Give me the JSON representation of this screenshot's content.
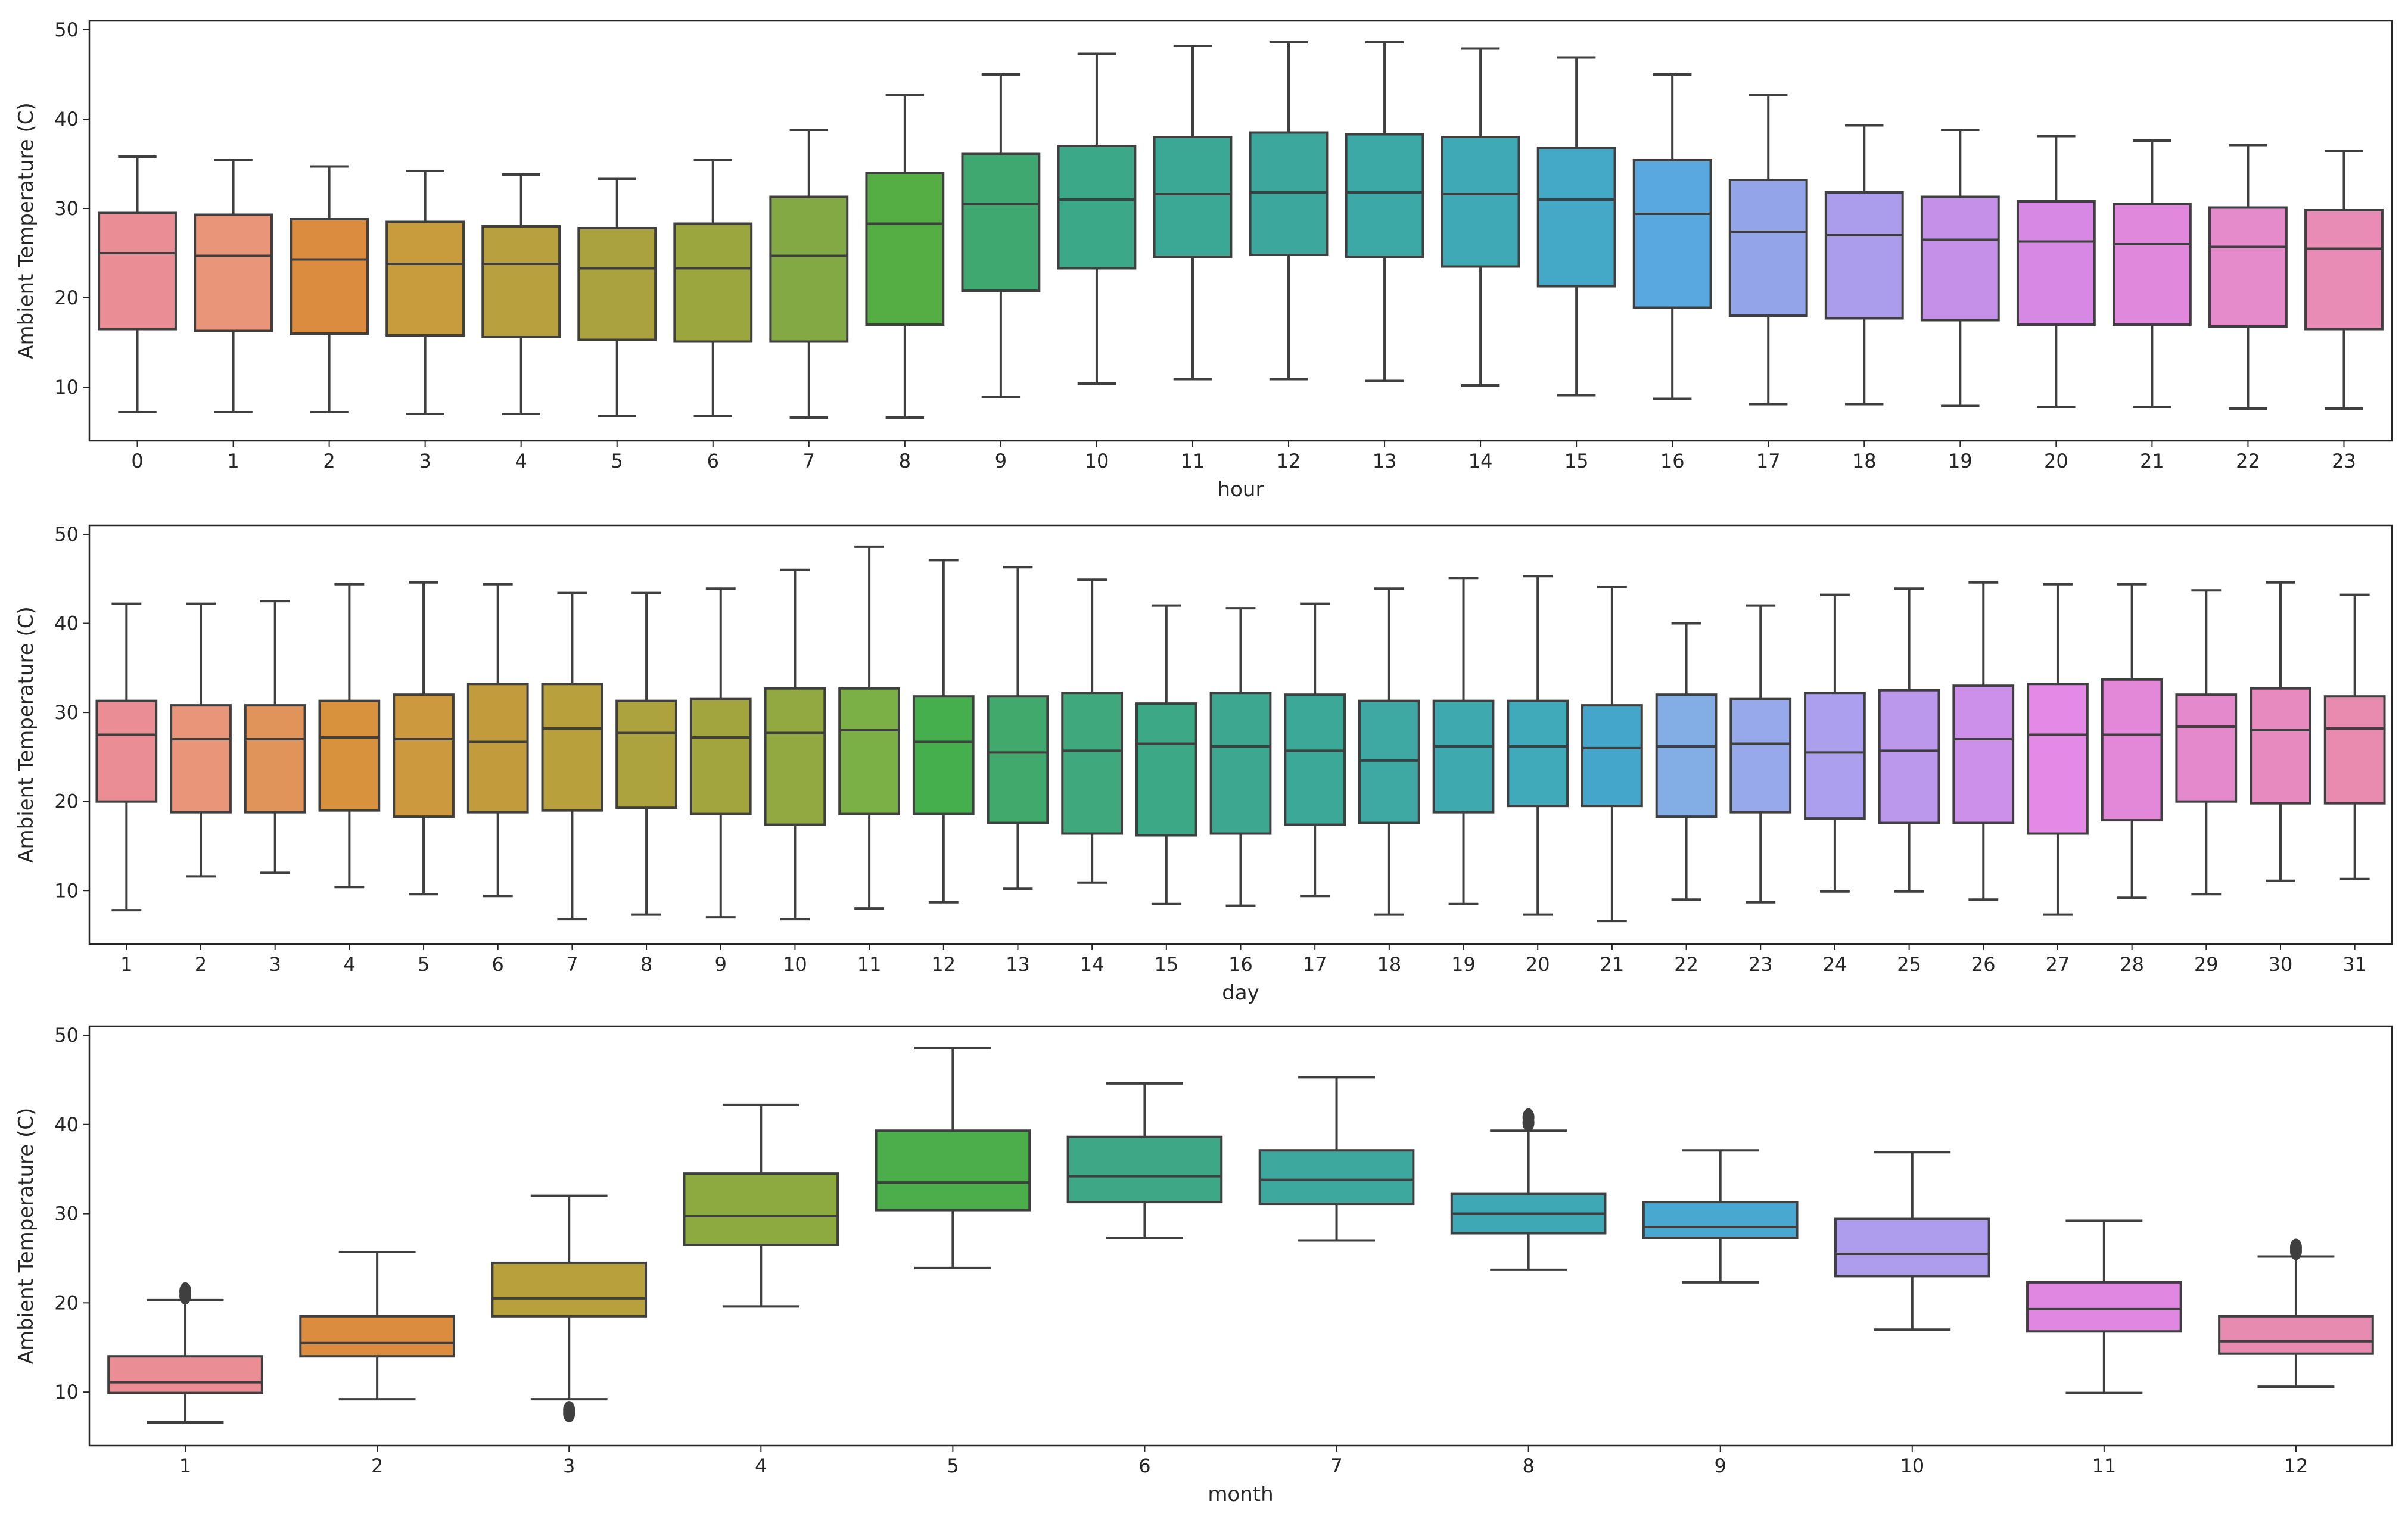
{
  "chart_data": [
    {
      "type": "box",
      "xlabel": "hour",
      "ylabel": "Ambient Temperature (C)",
      "ylim": [
        4,
        51
      ],
      "yticks": [
        10,
        20,
        30,
        40,
        50
      ],
      "grid": false,
      "categories": [
        "0",
        "1",
        "2",
        "3",
        "4",
        "5",
        "6",
        "7",
        "8",
        "9",
        "10",
        "11",
        "12",
        "13",
        "14",
        "15",
        "16",
        "17",
        "18",
        "19",
        "20",
        "21",
        "22",
        "23"
      ],
      "boxes": [
        {
          "whislo": 7.2,
          "q1": 16.5,
          "med": 25.0,
          "q3": 29.5,
          "whishi": 35.8,
          "color": "#ea8d94"
        },
        {
          "whislo": 7.2,
          "q1": 16.3,
          "med": 24.7,
          "q3": 29.3,
          "whishi": 35.4,
          "color": "#e8957a"
        },
        {
          "whislo": 7.2,
          "q1": 16.0,
          "med": 24.3,
          "q3": 28.8,
          "whishi": 34.7,
          "color": "#dc8c3e"
        },
        {
          "whislo": 7.0,
          "q1": 15.8,
          "med": 23.8,
          "q3": 28.5,
          "whishi": 34.2,
          "color": "#c89b3d"
        },
        {
          "whislo": 7.0,
          "q1": 15.6,
          "med": 23.8,
          "q3": 28.0,
          "whishi": 33.8,
          "color": "#b7a03d"
        },
        {
          "whislo": 6.8,
          "q1": 15.3,
          "med": 23.3,
          "q3": 27.8,
          "whishi": 33.3,
          "color": "#aaa23e"
        },
        {
          "whislo": 6.8,
          "q1": 15.1,
          "med": 23.3,
          "q3": 28.3,
          "whishi": 35.4,
          "color": "#9ca63e"
        },
        {
          "whislo": 6.6,
          "q1": 15.1,
          "med": 24.7,
          "q3": 31.3,
          "whishi": 38.8,
          "color": "#83a944"
        },
        {
          "whislo": 6.6,
          "q1": 17.0,
          "med": 28.3,
          "q3": 34.0,
          "whishi": 42.7,
          "color": "#55ae44"
        },
        {
          "whislo": 8.9,
          "q1": 20.8,
          "med": 30.5,
          "q3": 36.1,
          "whishi": 45.0,
          "color": "#3fa871"
        },
        {
          "whislo": 10.4,
          "q1": 23.3,
          "med": 31.0,
          "q3": 37.0,
          "whishi": 47.3,
          "color": "#3ba888"
        },
        {
          "whislo": 10.9,
          "q1": 24.6,
          "med": 31.6,
          "q3": 38.0,
          "whishi": 48.2,
          "color": "#3aa895"
        },
        {
          "whislo": 10.9,
          "q1": 24.8,
          "med": 31.8,
          "q3": 38.5,
          "whishi": 48.6,
          "color": "#3ca89d"
        },
        {
          "whislo": 10.7,
          "q1": 24.6,
          "med": 31.8,
          "q3": 38.3,
          "whishi": 48.6,
          "color": "#3da9a7"
        },
        {
          "whislo": 10.2,
          "q1": 23.5,
          "med": 31.6,
          "q3": 38.0,
          "whishi": 47.9,
          "color": "#3fa9b6"
        },
        {
          "whislo": 9.1,
          "q1": 21.3,
          "med": 31.0,
          "q3": 36.8,
          "whishi": 46.9,
          "color": "#44a9c6"
        },
        {
          "whislo": 8.7,
          "q1": 18.9,
          "med": 29.4,
          "q3": 35.4,
          "whishi": 45.0,
          "color": "#5aa8e0"
        },
        {
          "whislo": 8.1,
          "q1": 18.0,
          "med": 27.4,
          "q3": 33.2,
          "whishi": 42.7,
          "color": "#93a5e8"
        },
        {
          "whislo": 8.1,
          "q1": 17.7,
          "med": 27.0,
          "q3": 31.8,
          "whishi": 39.3,
          "color": "#ac9cec"
        },
        {
          "whislo": 7.9,
          "q1": 17.5,
          "med": 26.5,
          "q3": 31.3,
          "whishi": 38.8,
          "color": "#c490e8"
        },
        {
          "whislo": 7.8,
          "q1": 17.0,
          "med": 26.3,
          "q3": 30.8,
          "whishi": 38.1,
          "color": "#d788e4"
        },
        {
          "whislo": 7.8,
          "q1": 17.0,
          "med": 26.0,
          "q3": 30.5,
          "whishi": 37.6,
          "color": "#e088dc"
        },
        {
          "whislo": 7.6,
          "q1": 16.8,
          "med": 25.7,
          "q3": 30.1,
          "whishi": 37.1,
          "color": "#e58acb"
        },
        {
          "whislo": 7.6,
          "q1": 16.5,
          "med": 25.5,
          "q3": 29.8,
          "whishi": 36.4,
          "color": "#e88cb5"
        }
      ]
    },
    {
      "type": "box",
      "xlabel": "day",
      "ylabel": "Ambient Temperature (C)",
      "ylim": [
        4,
        51
      ],
      "yticks": [
        10,
        20,
        30,
        40,
        50
      ],
      "grid": false,
      "categories": [
        "1",
        "2",
        "3",
        "4",
        "5",
        "6",
        "7",
        "8",
        "9",
        "10",
        "11",
        "12",
        "13",
        "14",
        "15",
        "16",
        "17",
        "18",
        "19",
        "20",
        "21",
        "22",
        "23",
        "24",
        "25",
        "26",
        "27",
        "28",
        "29",
        "30",
        "31"
      ],
      "boxes": [
        {
          "whislo": 7.8,
          "q1": 20.0,
          "med": 27.5,
          "q3": 31.3,
          "whishi": 42.2,
          "color": "#ea8d94"
        },
        {
          "whislo": 11.6,
          "q1": 18.8,
          "med": 27.0,
          "q3": 30.8,
          "whishi": 42.2,
          "color": "#e8957a"
        },
        {
          "whislo": 12.0,
          "q1": 18.8,
          "med": 27.0,
          "q3": 30.8,
          "whishi": 42.5,
          "color": "#e0945a"
        },
        {
          "whislo": 10.4,
          "q1": 19.0,
          "med": 27.2,
          "q3": 31.3,
          "whishi": 44.4,
          "color": "#d8923e"
        },
        {
          "whislo": 9.6,
          "q1": 18.3,
          "med": 27.0,
          "q3": 32.0,
          "whishi": 44.6,
          "color": "#cc993e"
        },
        {
          "whislo": 9.4,
          "q1": 18.8,
          "med": 26.7,
          "q3": 33.2,
          "whishi": 44.4,
          "color": "#c29b3d"
        },
        {
          "whislo": 6.8,
          "q1": 19.0,
          "med": 28.2,
          "q3": 33.2,
          "whishi": 43.4,
          "color": "#b8a03d"
        },
        {
          "whislo": 7.3,
          "q1": 19.3,
          "med": 27.7,
          "q3": 31.3,
          "whishi": 43.4,
          "color": "#ada33e"
        },
        {
          "whislo": 7.0,
          "q1": 18.6,
          "med": 27.2,
          "q3": 31.5,
          "whishi": 43.9,
          "color": "#a2a53e"
        },
        {
          "whislo": 6.8,
          "q1": 17.4,
          "med": 27.7,
          "q3": 32.7,
          "whishi": 46.0,
          "color": "#92a840"
        },
        {
          "whislo": 8.0,
          "q1": 18.6,
          "med": 28.0,
          "q3": 32.7,
          "whishi": 48.6,
          "color": "#7ab045"
        },
        {
          "whislo": 8.7,
          "q1": 18.6,
          "med": 26.7,
          "q3": 31.8,
          "whishi": 47.1,
          "color": "#45ae4d"
        },
        {
          "whislo": 10.2,
          "q1": 17.6,
          "med": 25.5,
          "q3": 31.8,
          "whishi": 46.3,
          "color": "#42a96d"
        },
        {
          "whislo": 10.9,
          "q1": 16.4,
          "med": 25.7,
          "q3": 32.2,
          "whishi": 44.9,
          "color": "#3fa87c"
        },
        {
          "whislo": 8.5,
          "q1": 16.2,
          "med": 26.5,
          "q3": 31.0,
          "whishi": 42.0,
          "color": "#3ca885"
        },
        {
          "whislo": 8.3,
          "q1": 16.4,
          "med": 26.2,
          "q3": 32.2,
          "whishi": 41.7,
          "color": "#3da88f"
        },
        {
          "whislo": 9.4,
          "q1": 17.4,
          "med": 25.7,
          "q3": 32.0,
          "whishi": 42.2,
          "color": "#3ca898"
        },
        {
          "whislo": 7.3,
          "q1": 17.6,
          "med": 24.6,
          "q3": 31.3,
          "whishi": 43.9,
          "color": "#3da9a2"
        },
        {
          "whislo": 8.5,
          "q1": 18.8,
          "med": 26.2,
          "q3": 31.3,
          "whishi": 45.1,
          "color": "#3ea9ae"
        },
        {
          "whislo": 7.3,
          "q1": 19.5,
          "med": 26.2,
          "q3": 31.3,
          "whishi": 45.3,
          "color": "#40aabb"
        },
        {
          "whislo": 6.6,
          "q1": 19.5,
          "med": 26.0,
          "q3": 30.8,
          "whishi": 44.1,
          "color": "#45a6cc"
        },
        {
          "whislo": 9.0,
          "q1": 18.3,
          "med": 26.2,
          "q3": 32.0,
          "whishi": 40.0,
          "color": "#82aee5"
        },
        {
          "whislo": 8.7,
          "q1": 18.8,
          "med": 26.5,
          "q3": 31.5,
          "whishi": 42.0,
          "color": "#97a9ea"
        },
        {
          "whislo": 9.9,
          "q1": 18.1,
          "med": 25.5,
          "q3": 32.2,
          "whishi": 43.2,
          "color": "#ac9fed"
        },
        {
          "whislo": 9.9,
          "q1": 17.6,
          "med": 25.7,
          "q3": 32.5,
          "whishi": 43.9,
          "color": "#bc98ed"
        },
        {
          "whislo": 9.0,
          "q1": 17.6,
          "med": 27.0,
          "q3": 33.0,
          "whishi": 44.6,
          "color": "#cd90ea"
        },
        {
          "whislo": 7.3,
          "q1": 16.4,
          "med": 27.5,
          "q3": 33.2,
          "whishi": 44.4,
          "color": "#e48ae6"
        },
        {
          "whislo": 9.2,
          "q1": 17.9,
          "med": 27.5,
          "q3": 33.7,
          "whishi": 44.4,
          "color": "#e388d8"
        },
        {
          "whislo": 9.6,
          "q1": 20.0,
          "med": 28.4,
          "q3": 32.0,
          "whishi": 43.7,
          "color": "#e489cc"
        },
        {
          "whislo": 11.1,
          "q1": 19.8,
          "med": 28.0,
          "q3": 32.7,
          "whishi": 44.6,
          "color": "#e68ac0"
        },
        {
          "whislo": 11.3,
          "q1": 19.8,
          "med": 28.2,
          "q3": 31.8,
          "whishi": 43.2,
          "color": "#e88bae"
        }
      ]
    },
    {
      "type": "box",
      "xlabel": "month",
      "ylabel": "Ambient Temperature (C)",
      "ylim": [
        4,
        51
      ],
      "yticks": [
        10,
        20,
        30,
        40,
        50
      ],
      "grid": false,
      "categories": [
        "1",
        "2",
        "3",
        "4",
        "5",
        "6",
        "7",
        "8",
        "9",
        "10",
        "11",
        "12"
      ],
      "boxes": [
        {
          "whislo": 6.6,
          "q1": 9.9,
          "med": 11.1,
          "q3": 14.0,
          "whishi": 20.3,
          "fliers": [
            20.8,
            21.3
          ],
          "color": "#ea8d94"
        },
        {
          "whislo": 9.2,
          "q1": 14.0,
          "med": 15.5,
          "q3": 18.5,
          "whishi": 25.7,
          "fliers": [],
          "color": "#dc8c3e"
        },
        {
          "whislo": 9.2,
          "q1": 18.5,
          "med": 20.5,
          "q3": 24.5,
          "whishi": 32.0,
          "fliers": [
            7.6,
            8.0
          ],
          "color": "#b8a03d"
        },
        {
          "whislo": 19.6,
          "q1": 26.5,
          "med": 29.7,
          "q3": 34.5,
          "whishi": 42.2,
          "fliers": [],
          "color": "#8daa41"
        },
        {
          "whislo": 23.9,
          "q1": 30.4,
          "med": 33.5,
          "q3": 39.3,
          "whishi": 48.6,
          "fliers": [],
          "color": "#4cae4b"
        },
        {
          "whislo": 27.3,
          "q1": 31.3,
          "med": 34.2,
          "q3": 38.6,
          "whishi": 44.6,
          "fliers": [],
          "color": "#3ea886"
        },
        {
          "whislo": 27.0,
          "q1": 31.1,
          "med": 33.8,
          "q3": 37.1,
          "whishi": 45.3,
          "fliers": [],
          "color": "#3ca89e"
        },
        {
          "whislo": 23.7,
          "q1": 27.8,
          "med": 30.0,
          "q3": 32.2,
          "whishi": 39.3,
          "fliers": [
            40.2,
            40.8
          ],
          "color": "#3ea9b4"
        },
        {
          "whislo": 22.3,
          "q1": 27.3,
          "med": 28.5,
          "q3": 31.3,
          "whishi": 37.1,
          "fliers": [],
          "color": "#48a8d0"
        },
        {
          "whislo": 17.0,
          "q1": 23.0,
          "med": 25.5,
          "q3": 29.4,
          "whishi": 36.9,
          "fliers": [],
          "color": "#ae9ced"
        },
        {
          "whislo": 9.9,
          "q1": 16.8,
          "med": 19.3,
          "q3": 22.3,
          "whishi": 29.2,
          "fliers": [],
          "color": "#e087e2"
        },
        {
          "whislo": 10.6,
          "q1": 14.3,
          "med": 15.7,
          "q3": 18.5,
          "whishi": 25.2,
          "fliers": [
            25.8,
            26.2
          ],
          "color": "#e88bb0"
        }
      ]
    }
  ]
}
